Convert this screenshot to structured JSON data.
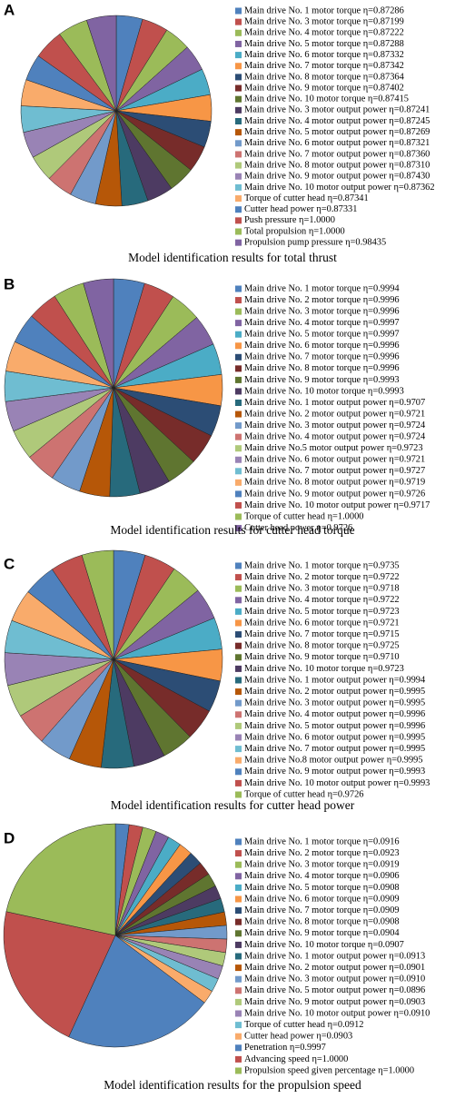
{
  "chart_data": [
    {
      "type": "pie",
      "label": "A",
      "title": "Model identification results for total thrust",
      "palette": [
        "#4f81bd",
        "#c0504d",
        "#9bbb59",
        "#8064a2",
        "#4bacc6",
        "#f79646",
        "#2c4d75",
        "#772c2a",
        "#5f7530",
        "#4d3b62",
        "#276a7c",
        "#b65708",
        "#729aca",
        "#cd7371",
        "#afc97a",
        "#9983b5",
        "#6fbdd1",
        "#f9ab6b"
      ],
      "categories": [
        "Main drive No. 1 motor torque η=0.87286",
        "Main drive No. 3 motor torque η=0.87199",
        "Main drive No. 4 motor torque η=0.87222",
        "Main drive No. 5 motor torque η=0.87288",
        "Main drive No. 6 motor torque η=0.87332",
        "Main drive No. 7 motor torque η=0.87342",
        "Main drive No. 8 motor torque η=0.87364",
        "Main drive No. 9 motor torque η=0.87402",
        "Main drive No. 10 motor torque η=0.87415",
        "Main drive No. 3 motor output power η=0.87241",
        "Main drive No. 4 motor output power η=0.87245",
        "Main drive No. 5 motor output power η=0.87269",
        "Main drive No. 6 motor output power η=0.87321",
        "Main drive No. 7 motor output power η=0.87360",
        "Main drive No. 8 motor output power η=0.87310",
        "Main drive No. 9 motor output power η=0.87430",
        "Main drive No. 10 motor output power η=0.87362",
        "Torque of cutter head η=0.87341",
        "Cutter head power η=0.87331",
        "Push pressure η=1.0000",
        "Total propulsion η=1.0000",
        "Propulsion pump pressure η=0.98435"
      ],
      "values": [
        0.87286,
        0.87199,
        0.87222,
        0.87288,
        0.87332,
        0.87342,
        0.87364,
        0.87402,
        0.87415,
        0.87241,
        0.87245,
        0.87269,
        0.87321,
        0.8736,
        0.8731,
        0.8743,
        0.87362,
        0.87341,
        0.87331,
        1.0,
        1.0,
        0.98435
      ]
    },
    {
      "type": "pie",
      "label": "B",
      "title": "Model identification results for cutter head torque",
      "palette": [
        "#4f81bd",
        "#c0504d",
        "#9bbb59",
        "#8064a2",
        "#4bacc6",
        "#f79646",
        "#2c4d75",
        "#772c2a",
        "#5f7530",
        "#4d3b62",
        "#276a7c",
        "#b65708",
        "#729aca",
        "#cd7371",
        "#afc97a",
        "#9983b5",
        "#6fbdd1",
        "#f9ab6b"
      ],
      "categories": [
        "Main drive No. 1 motor torque η=0.9994",
        "Main drive No. 2 motor torque η=0.9996",
        "Main drive No. 3 motor torque η=0.9996",
        "Main drive No. 4 motor torque η=0.9997",
        "Main drive No. 5 motor torque η=0.9997",
        "Main drive No. 6 motor torque η=0.9996",
        "Main drive No. 7 motor torque η=0.9996",
        "Main drive No. 8 motor torque η=0.9996",
        "Main drive No. 9 motor torque η=0.9993",
        "Main drive No. 10 motor torque η=0.9993",
        "Main drive No. 1 motor output power η=0.9707",
        "Main drive No. 2 motor output power η=0.9721",
        "Main drive No. 3 motor output power η=0.9724",
        "Main drive No. 4 motor output power η=0.9724",
        "Main drive No.5 motor output power η=0.9723",
        "Main drive No. 6 motor output power η=0.9721",
        "Main drive No. 7 motor output power η=0.9727",
        "Main drive No. 8 motor output power η=0.9719",
        "Main drive No. 9 motor output power η=0.9726",
        "Main drive No. 10 motor output power η=0.9717",
        "Torque of cutter head η=1.0000",
        "Cutter head power η=0.9726"
      ],
      "values": [
        0.9994,
        0.9996,
        0.9996,
        0.9997,
        0.9997,
        0.9996,
        0.9996,
        0.9996,
        0.9993,
        0.9993,
        0.9707,
        0.9721,
        0.9724,
        0.9724,
        0.9723,
        0.9721,
        0.9727,
        0.9719,
        0.9726,
        0.9717,
        1.0,
        0.9726
      ]
    },
    {
      "type": "pie",
      "label": "C",
      "title": "Model identification results for cutter head power",
      "palette": [
        "#4f81bd",
        "#c0504d",
        "#9bbb59",
        "#8064a2",
        "#4bacc6",
        "#f79646",
        "#2c4d75",
        "#772c2a",
        "#5f7530",
        "#4d3b62",
        "#276a7c",
        "#b65708",
        "#729aca",
        "#cd7371",
        "#afc97a",
        "#9983b5",
        "#6fbdd1",
        "#f9ab6b"
      ],
      "categories": [
        "Main drive No. 1 motor torque η=0.9735",
        "Main drive No. 2 motor torque η=0.9722",
        "Main drive No. 3 motor torque η=0.9718",
        "Main drive No. 4 motor torque η=0.9722",
        "Main drive No. 5 motor torque η=0.9723",
        "Main drive No. 6 motor torque η=0.9721",
        "Main drive No. 7 motor torque η=0.9715",
        "Main drive No. 8 motor torque η=0.9725",
        "Main drive No. 9 motor torque η=0.9710",
        "Main drive No. 10 motor torque η=0.9723",
        "Main drive No. 1 motor output power η=0.9994",
        "Main drive No. 2 motor output power η=0.9995",
        "Main drive No. 3 motor output power η=0.9995",
        "Main drive No. 4 motor output power η=0.9996",
        "Main drive No. 5 motor output power η=0.9996",
        "Main drive No. 6 motor output power η=0.9995",
        "Main drive No. 7 motor output power η=0.9995",
        "Main drive No.8 motor output power η=0.9995",
        "Main drive No. 9 motor output power η=0.9993",
        "Main drive No. 10 motor output power η=0.9993",
        "Torque of cutter head η=0.9726"
      ],
      "values": [
        0.9735,
        0.9722,
        0.9718,
        0.9722,
        0.9723,
        0.9721,
        0.9715,
        0.9725,
        0.971,
        0.9723,
        0.9994,
        0.9995,
        0.9995,
        0.9996,
        0.9996,
        0.9995,
        0.9995,
        0.9995,
        0.9993,
        0.9993,
        0.9726
      ]
    },
    {
      "type": "pie",
      "label": "D",
      "title": "Model identification results for the propulsion speed",
      "palette": [
        "#4f81bd",
        "#c0504d",
        "#9bbb59",
        "#8064a2",
        "#4bacc6",
        "#f79646",
        "#2c4d75",
        "#772c2a",
        "#5f7530",
        "#4d3b62",
        "#276a7c",
        "#b65708",
        "#729aca",
        "#cd7371",
        "#afc97a",
        "#9983b5",
        "#6fbdd1",
        "#f9ab6b"
      ],
      "categories": [
        "Main drive No. 1 motor torque η=0.0916",
        "Main drive No. 2 motor torque η=0.0923",
        "Main drive No. 3 motor torque η=0.0919",
        "Main drive No. 4 motor torque η=0.0906",
        "Main drive No. 5 motor torque η=0.0908",
        "Main drive No. 6 motor torque η=0.0909",
        "Main drive No. 7 motor torque η=0.0909",
        "Main drive No. 8 motor torque η=0.0908",
        "Main drive No. 9 motor torque η=0.0904",
        "Main drive No. 10 motor torque η=0.0907",
        "Main drive No. 1 motor output power η=0.0913",
        "Main drive No. 2 motor output power η=0.0901",
        "Main drive No. 3 motor output power η=0.0910",
        "Main drive No. 5 motor output power η=0.0896",
        "Main drive No. 9 motor output power η=0.0903",
        "Main drive No. 10 motor output power η=0.0910",
        "Torque of cutter head η=0.0912",
        "Cutter head power η=0.0903",
        "Penetration η=0.9997",
        "Advancing speed η=1.0000",
        "Propulsion speed given percentage  η=1.0000"
      ],
      "values": [
        0.0916,
        0.0923,
        0.0919,
        0.0906,
        0.0908,
        0.0909,
        0.0909,
        0.0908,
        0.0904,
        0.0907,
        0.0913,
        0.0901,
        0.091,
        0.0896,
        0.0903,
        0.091,
        0.0912,
        0.0903,
        0.9997,
        1.0,
        1.0
      ]
    }
  ]
}
